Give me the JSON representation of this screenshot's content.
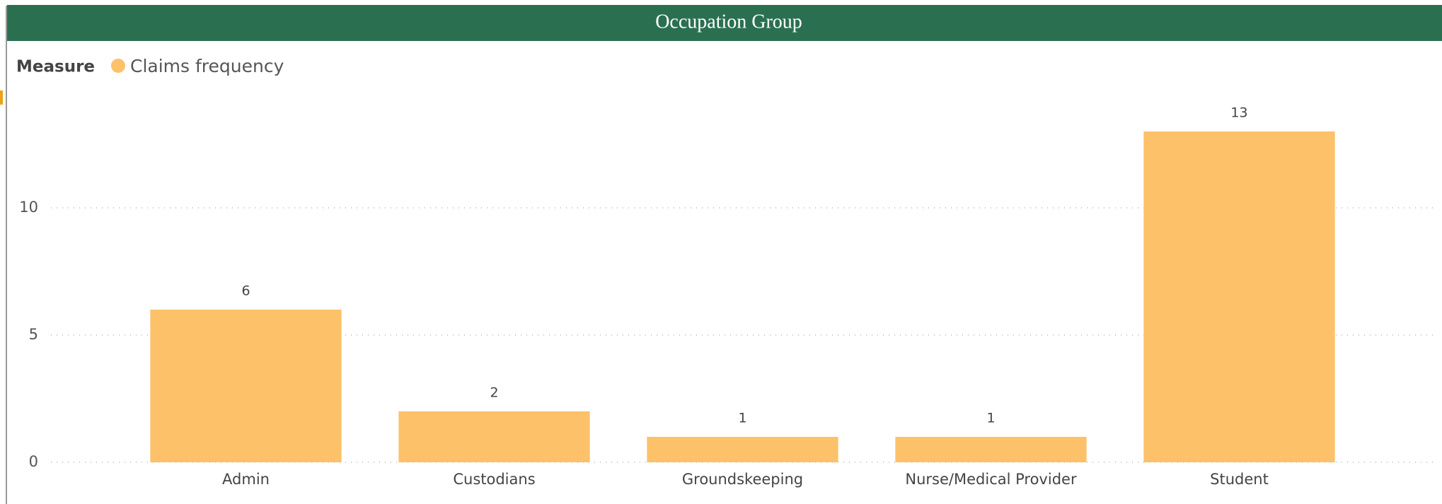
{
  "chart_data": {
    "type": "bar",
    "title": "Occupation Group",
    "legend_title": "Measure",
    "series": [
      {
        "name": "Claims frequency",
        "color": "#fcc169",
        "values": [
          6,
          2,
          1,
          1,
          13
        ]
      }
    ],
    "categories": [
      "Admin",
      "Custodians",
      "Groundskeeping",
      "Nurse/Medical Provider",
      "Student"
    ],
    "ylim": [
      0,
      14
    ],
    "yticks": [
      0,
      5,
      10
    ],
    "grid": true
  }
}
